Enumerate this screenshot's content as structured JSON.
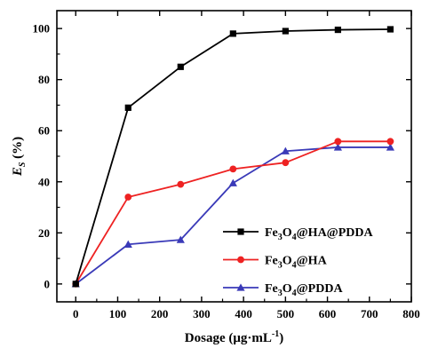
{
  "chart_data": {
    "type": "line",
    "x": [
      0,
      125,
      250,
      375,
      500,
      625,
      750
    ],
    "xlim": [
      -45,
      800
    ],
    "ylim": [
      -7,
      107
    ],
    "xticks": [
      0,
      100,
      200,
      300,
      400,
      500,
      600,
      700,
      800
    ],
    "yticks": [
      0,
      20,
      40,
      60,
      80,
      100
    ],
    "xlabel": {
      "base": "Dosage (μg·mL",
      "sup": "-1",
      "close": ")"
    },
    "ylabel": {
      "main": "E",
      "sub": "S",
      "rest": " (%)"
    },
    "grid": false,
    "legend_position": "bottom-right",
    "series": [
      {
        "name": "Fe3O4@HA@PDDA",
        "label_parts": [
          {
            "t": "Fe"
          },
          {
            "t": "3",
            "sub": true
          },
          {
            "t": "O"
          },
          {
            "t": "4",
            "sub": true
          },
          {
            "t": "@HA@PDDA"
          }
        ],
        "color": "#000000",
        "marker": "square",
        "values": [
          0,
          69,
          85,
          98,
          99,
          99.5,
          99.7
        ]
      },
      {
        "name": "Fe3O4@HA",
        "label_parts": [
          {
            "t": "Fe"
          },
          {
            "t": "3",
            "sub": true
          },
          {
            "t": "O"
          },
          {
            "t": "4",
            "sub": true
          },
          {
            "t": "@HA"
          }
        ],
        "color": "#ee2222",
        "marker": "circle",
        "values": [
          0,
          34,
          39,
          45,
          47.5,
          55.8,
          55.8
        ]
      },
      {
        "name": "Fe3O4@PDDA",
        "label_parts": [
          {
            "t": "Fe"
          },
          {
            "t": "3",
            "sub": true
          },
          {
            "t": "O"
          },
          {
            "t": "4",
            "sub": true
          },
          {
            "t": "@PDDA"
          }
        ],
        "color": "#3a3ab8",
        "marker": "triangle",
        "values": [
          0,
          15.5,
          17.3,
          39.5,
          52,
          53.5,
          53.5
        ]
      }
    ]
  }
}
